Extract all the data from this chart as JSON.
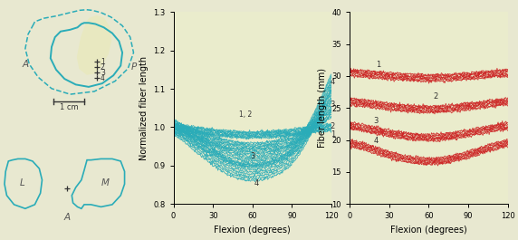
{
  "teal_color": "#2aacb8",
  "red_color": "#cc2222",
  "panel_bg": "#eaeccc",
  "fig_bg": "#e8e8d0",
  "text_color": "#555555",
  "middle_plot": {
    "xlim": [
      0,
      120
    ],
    "ylim": [
      0.8,
      1.3
    ],
    "xticks": [
      0,
      30,
      60,
      90,
      120
    ],
    "yticks": [
      0.8,
      0.9,
      1.0,
      1.1,
      1.2,
      1.3
    ],
    "xlabel": "Flexion (degrees)",
    "ylabel": "Normalized fiber length"
  },
  "right_plot": {
    "xlim": [
      0,
      120
    ],
    "ylim": [
      10,
      40
    ],
    "xticks": [
      0,
      30,
      60,
      90,
      120
    ],
    "yticks": [
      10,
      15,
      20,
      25,
      30,
      35,
      40
    ],
    "xlabel": "Flexion (degrees)",
    "ylabel": "Fiber length (mm)"
  },
  "upper_anatomy": {
    "fill_color": "#e8e8c0",
    "fill_x": [
      0.05,
      0.1,
      0.22,
      0.35,
      0.45,
      0.48,
      0.42,
      0.3,
      0.18,
      0.05,
      -0.08,
      -0.12,
      -0.05,
      0.05
    ],
    "fill_y": [
      1.82,
      1.88,
      1.92,
      1.88,
      1.72,
      1.5,
      1.25,
      1.05,
      0.92,
      0.9,
      1.0,
      1.2,
      1.55,
      1.82
    ],
    "solid_x": [
      -0.52,
      -0.58,
      -0.6,
      -0.5,
      -0.35,
      -0.15,
      0.08,
      0.32,
      0.52,
      0.65,
      0.68,
      0.62,
      0.5,
      0.35,
      0.2,
      0.08,
      0.0,
      -0.05,
      -0.12,
      -0.25,
      -0.42,
      -0.52
    ],
    "solid_y": [
      1.55,
      1.38,
      1.18,
      0.98,
      0.82,
      0.72,
      0.68,
      0.74,
      0.88,
      1.05,
      1.28,
      1.48,
      1.62,
      1.72,
      1.78,
      1.8,
      1.8,
      1.78,
      1.72,
      1.68,
      1.65,
      1.55
    ],
    "dashed_x": [
      -0.9,
      -1.0,
      -1.05,
      -0.98,
      -0.82,
      -0.58,
      -0.25,
      0.18,
      0.55,
      0.78,
      0.88,
      0.82,
      0.68,
      0.48,
      0.3,
      0.14,
      0.04,
      -0.08,
      -0.25,
      -0.5,
      -0.72,
      -0.88,
      -0.9
    ],
    "dashed_y": [
      1.78,
      1.6,
      1.35,
      1.08,
      0.85,
      0.65,
      0.55,
      0.6,
      0.78,
      1.0,
      1.28,
      1.55,
      1.75,
      1.9,
      1.98,
      2.02,
      2.03,
      2.02,
      1.98,
      1.92,
      1.88,
      1.82,
      1.78
    ],
    "attach_pts": [
      [
        0.22,
        1.12
      ],
      [
        0.22,
        1.02
      ],
      [
        0.22,
        0.93
      ],
      [
        0.22,
        0.83
      ]
    ]
  }
}
